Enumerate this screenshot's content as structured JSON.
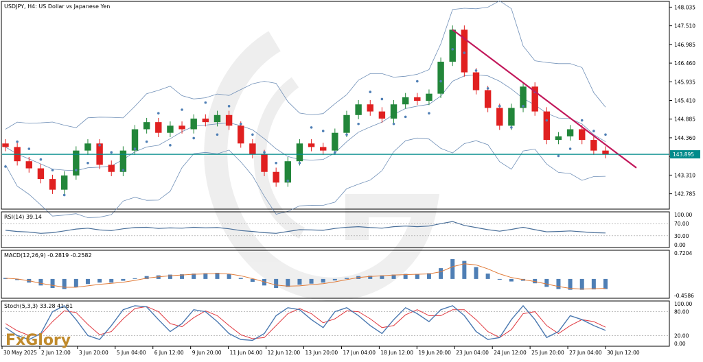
{
  "header": {
    "symbol_title": "USDJPY, H4:  US Dollar vs Japanese Yen"
  },
  "brand": {
    "logo_text": "FxGlory"
  },
  "colors": {
    "bull": "#22863a",
    "bear": "#e02020",
    "price_line": "#008b8b",
    "trend_line": "#c2185b",
    "bands": "#6f8fb7",
    "sar": "#4f7fb5",
    "rsi": "#4a6f99",
    "macd_hist": "#4f7fb5",
    "macd_signal": "#e07b39",
    "stoch_main": "#4a78b0",
    "stoch_signal": "#e0383f",
    "price_tag_bg": "#008b8b",
    "price_tag_text": "#ffffff"
  },
  "main_panel": {
    "y_ticks": [
      "148.035",
      "147.510",
      "146.985",
      "146.460",
      "145.935",
      "145.410",
      "144.885",
      "144.360",
      "143.835",
      "143.310",
      "142.785"
    ],
    "current_price_label": "143.895",
    "current_price": 143.895
  },
  "x_axis": {
    "labels": [
      "30 May 2025",
      "2 Jun 12:00",
      "3 Jun 20:00",
      "5 Jun 04:00",
      "6 Jun 12:00",
      "9 Jun 20:00",
      "11 Jun 04:00",
      "12 Jun 12:00",
      "13 Jun 20:00",
      "17 Jun 04:00",
      "18 Jun 12:00",
      "19 Jun 20:00",
      "23 Jun 04:00",
      "24 Jun 12:00",
      "25 Jun 20:00",
      "27 Jun 04:00",
      "30 Jun 12:00"
    ]
  },
  "rsi_panel": {
    "label": "RSI(14) 39.14",
    "levels": [
      "100.00",
      "70.00",
      "30.00",
      "0.00"
    ]
  },
  "macd_panel": {
    "label": "MACD(12,26,9) -0.2819 -0.2582",
    "levels": [
      "0.7204",
      "-0.4586"
    ]
  },
  "stoch_panel": {
    "label": "Stoch(5,3,3) 33.28 41.61",
    "levels": [
      "100.00",
      "80.00",
      "20.00",
      "0.00"
    ]
  },
  "chart_data": {
    "type": "candlestick",
    "symbol": "USDJPY",
    "timeframe": "H4",
    "y_range": [
      142.45,
      148.12
    ],
    "indicators": [
      "Bollinger Bands",
      "Parabolic SAR",
      "RSI(14)",
      "MACD(12,26,9)",
      "Stoch(5,3,3)"
    ],
    "close_path": [
      144.1,
      143.7,
      143.5,
      143.2,
      142.9,
      143.3,
      144.0,
      144.2,
      143.6,
      143.4,
      144.0,
      144.6,
      144.8,
      144.5,
      144.7,
      144.6,
      144.9,
      144.8,
      145.0,
      144.7,
      144.2,
      143.9,
      143.4,
      143.1,
      143.7,
      144.2,
      144.1,
      144.0,
      144.5,
      145.0,
      145.3,
      145.1,
      144.9,
      145.3,
      145.5,
      145.4,
      145.6,
      146.5,
      147.4,
      146.2,
      145.7,
      145.2,
      144.7,
      145.2,
      145.8,
      145.1,
      144.3,
      144.4,
      144.6,
      144.3,
      144.0,
      143.9
    ],
    "rsi": {
      "value": 39.14,
      "levels": [
        70,
        30
      ],
      "path": [
        48,
        44,
        42,
        38,
        40,
        46,
        52,
        55,
        49,
        47,
        53,
        57,
        58,
        54,
        56,
        55,
        58,
        56,
        57,
        53,
        47,
        44,
        40,
        38,
        44,
        50,
        49,
        48,
        54,
        58,
        60,
        57,
        55,
        60,
        62,
        60,
        62,
        70,
        77,
        64,
        57,
        50,
        45,
        51,
        58,
        50,
        43,
        44,
        46,
        43,
        40,
        39
      ]
    },
    "macd": {
      "main": -0.2819,
      "signal": -0.2582,
      "range": [
        -0.4586,
        0.7204
      ],
      "hist": [
        0.03,
        -0.03,
        -0.1,
        -0.18,
        -0.25,
        -0.28,
        -0.22,
        -0.14,
        -0.1,
        -0.1,
        -0.05,
        0.02,
        0.08,
        0.1,
        0.12,
        0.13,
        0.15,
        0.16,
        0.17,
        0.13,
        0.03,
        -0.08,
        -0.18,
        -0.25,
        -0.22,
        -0.16,
        -0.13,
        -0.1,
        -0.04,
        0.03,
        0.08,
        0.09,
        0.1,
        0.12,
        0.14,
        0.14,
        0.16,
        0.3,
        0.55,
        0.5,
        0.33,
        0.15,
        -0.02,
        -0.07,
        -0.05,
        -0.12,
        -0.22,
        -0.28,
        -0.3,
        -0.3,
        -0.29,
        -0.28
      ],
      "signal_path": [
        0.02,
        0.0,
        -0.05,
        -0.12,
        -0.18,
        -0.23,
        -0.23,
        -0.19,
        -0.15,
        -0.12,
        -0.09,
        -0.04,
        0.02,
        0.06,
        0.09,
        0.11,
        0.13,
        0.14,
        0.15,
        0.14,
        0.09,
        0.01,
        -0.08,
        -0.17,
        -0.2,
        -0.19,
        -0.16,
        -0.13,
        -0.08,
        -0.02,
        0.04,
        0.07,
        0.09,
        0.11,
        0.12,
        0.13,
        0.14,
        0.2,
        0.34,
        0.42,
        0.39,
        0.28,
        0.14,
        0.04,
        -0.02,
        -0.07,
        -0.14,
        -0.21,
        -0.26,
        -0.28,
        -0.27,
        -0.26
      ]
    },
    "stoch": {
      "main": 33.28,
      "signal": 41.61,
      "levels": [
        80,
        20
      ],
      "main_path": [
        40,
        20,
        10,
        25,
        80,
        95,
        60,
        20,
        10,
        45,
        85,
        95,
        92,
        60,
        30,
        50,
        85,
        80,
        55,
        25,
        10,
        8,
        25,
        70,
        90,
        85,
        60,
        40,
        80,
        90,
        70,
        45,
        25,
        60,
        90,
        75,
        55,
        85,
        95,
        70,
        30,
        10,
        15,
        60,
        95,
        60,
        15,
        30,
        70,
        60,
        45,
        33
      ],
      "signal_path": [
        50,
        32,
        20,
        22,
        55,
        82,
        78,
        48,
        22,
        30,
        62,
        88,
        93,
        80,
        50,
        42,
        65,
        82,
        70,
        45,
        22,
        12,
        15,
        45,
        75,
        88,
        75,
        52,
        62,
        82,
        80,
        62,
        40,
        45,
        72,
        85,
        70,
        70,
        85,
        85,
        60,
        30,
        15,
        35,
        75,
        80,
        45,
        25,
        45,
        60,
        55,
        41
      ]
    }
  }
}
